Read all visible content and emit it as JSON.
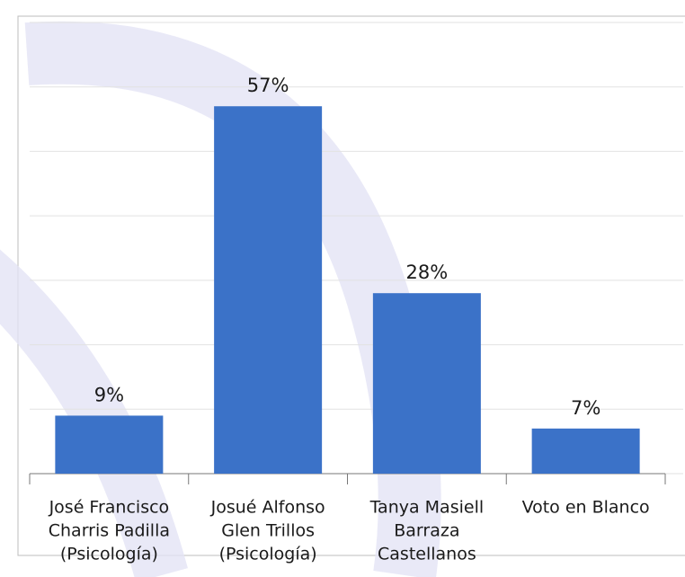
{
  "chart_data": {
    "type": "bar",
    "categories": [
      [
        "José Francisco",
        "Charris Padilla",
        "(Psicología)"
      ],
      [
        "Josué Alfonso",
        "Glen Trillos",
        "(Psicología)"
      ],
      [
        "Tanya Masiell",
        "Barraza",
        "Castellanos"
      ],
      [
        "Voto en Blanco"
      ]
    ],
    "values": [
      9,
      57,
      28,
      7
    ],
    "value_labels": [
      "9%",
      "57%",
      "28%",
      "7%"
    ],
    "color": "#3b72c8",
    "ylim": [
      0,
      70
    ],
    "yticks": [
      0,
      10,
      20,
      30,
      40,
      50,
      60,
      70
    ],
    "grid": true
  }
}
